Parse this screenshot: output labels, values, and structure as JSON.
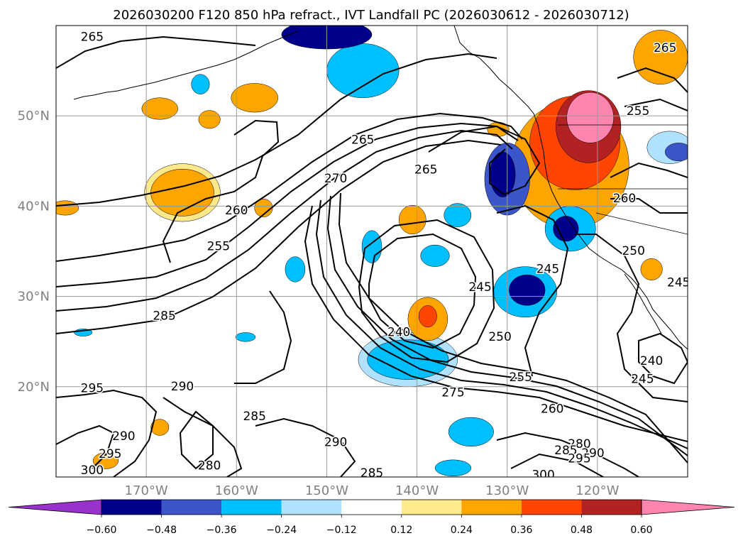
{
  "chart_data": {
    "type": "contour-map",
    "title": "2026030200 F120 850 hPa refract., IVT Landfall PC (2026030612 - 2026030712)",
    "lon_range": [
      -180,
      -110
    ],
    "lat_range": [
      10,
      60
    ],
    "grid": true,
    "xticks": [
      {
        "lon": -170,
        "label": "170°W"
      },
      {
        "lon": -160,
        "label": "160°W"
      },
      {
        "lon": -150,
        "label": "150°W"
      },
      {
        "lon": -140,
        "label": "140°W"
      },
      {
        "lon": -130,
        "label": "130°W"
      },
      {
        "lon": -120,
        "label": "120°W"
      }
    ],
    "yticks": [
      {
        "lat": 50,
        "label": "50°N"
      },
      {
        "lat": 40,
        "label": "40°N"
      },
      {
        "lat": 30,
        "label": "30°N"
      },
      {
        "lat": 20,
        "label": "20°N"
      }
    ],
    "colorbar": {
      "orientation": "horizontal",
      "extend": "both",
      "boundaries": [
        -0.72,
        -0.6,
        -0.48,
        -0.36,
        -0.24,
        -0.12,
        0.12,
        0.24,
        0.36,
        0.48,
        0.6,
        0.72
      ],
      "colors": [
        "#9932cc",
        "#00008b",
        "#3a56c8",
        "#00bfff",
        "#b0e2ff",
        "#ffffff",
        "#ffe98a",
        "#ffa500",
        "#ff4500",
        "#b22222",
        "#ff85b0"
      ],
      "tick_labels": [
        "−0.60",
        "−0.48",
        "−0.36",
        "−0.24",
        "−0.12",
        "0.12",
        "0.24",
        "0.36",
        "0.48",
        "0.60"
      ]
    },
    "filled_regions": [
      {
        "value": 0.3,
        "lon": -166.0,
        "lat": 41.5,
        "rlon": 3.5,
        "rlat": 2.6
      },
      {
        "value": 0.18,
        "lon": -166.0,
        "lat": 41.5,
        "rlon": 4.2,
        "rlat": 3.2
      },
      {
        "value": 0.24,
        "lon": -158.0,
        "lat": 52.0,
        "rlon": 2.6,
        "rlat": 1.6
      },
      {
        "value": 0.3,
        "lon": -168.5,
        "lat": 50.8,
        "rlon": 2.0,
        "rlat": 1.2
      },
      {
        "value": 0.24,
        "lon": -163.0,
        "lat": 49.6,
        "rlon": 1.2,
        "rlat": 1.0
      },
      {
        "value": 0.26,
        "lon": -138.8,
        "lat": 27.5,
        "rlon": 2.2,
        "rlat": 2.4
      },
      {
        "value": 0.4,
        "lon": -138.8,
        "lat": 27.8,
        "rlon": 1.0,
        "rlat": 1.2
      },
      {
        "value": 0.3,
        "lon": -140.5,
        "lat": 38.5,
        "rlon": 1.5,
        "rlat": 1.6
      },
      {
        "value": 0.25,
        "lon": -157.0,
        "lat": 39.8,
        "rlon": 1.0,
        "rlat": 1.0
      },
      {
        "value": 0.28,
        "lon": -179.0,
        "lat": 39.8,
        "rlon": 1.5,
        "rlat": 0.8
      },
      {
        "value": 0.26,
        "lon": -168.5,
        "lat": 15.5,
        "rlon": 1.0,
        "rlat": 0.9
      },
      {
        "value": 0.3,
        "lon": -174.5,
        "lat": 11.8,
        "rlon": 1.4,
        "rlat": 0.9
      },
      {
        "value": 0.3,
        "lon": -131.0,
        "lat": 48.5,
        "rlon": 1.2,
        "rlat": 0.8
      },
      {
        "value": 0.25,
        "lon": -114.0,
        "lat": 33.0,
        "rlon": 1.2,
        "rlat": 1.2
      },
      {
        "value": 0.26,
        "lon": -123.0,
        "lat": 44.5,
        "rlon": 6.5,
        "rlat": 7.0
      },
      {
        "value": 0.4,
        "lon": -122.5,
        "lat": 47.0,
        "rlon": 5.0,
        "rlat": 5.2
      },
      {
        "value": 0.52,
        "lon": -121.0,
        "lat": 48.8,
        "rlon": 3.6,
        "rlat": 4.0
      },
      {
        "value": 0.66,
        "lon": -120.8,
        "lat": 49.8,
        "rlon": 2.6,
        "rlat": 2.8
      },
      {
        "value": 0.3,
        "lon": -113.0,
        "lat": 56.5,
        "rlon": 3.0,
        "rlat": 3.0
      },
      {
        "value": -0.3,
        "lon": -141.0,
        "lat": 23.0,
        "rlon": 4.5,
        "rlat": 2.2
      },
      {
        "value": -0.2,
        "lon": -141.0,
        "lat": 23.0,
        "rlon": 5.5,
        "rlat": 3.0
      },
      {
        "value": -0.38,
        "lon": -130.0,
        "lat": 43.0,
        "rlon": 2.5,
        "rlat": 4.0
      },
      {
        "value": -0.55,
        "lon": -130.5,
        "lat": 43.5,
        "rlon": 1.4,
        "rlat": 2.5
      },
      {
        "value": -0.34,
        "lon": -128.0,
        "lat": 30.5,
        "rlon": 3.5,
        "rlat": 2.8
      },
      {
        "value": -0.56,
        "lon": -127.8,
        "lat": 30.7,
        "rlon": 2.0,
        "rlat": 1.7
      },
      {
        "value": -0.3,
        "lon": -123.0,
        "lat": 37.5,
        "rlon": 2.8,
        "rlat": 2.5
      },
      {
        "value": -0.5,
        "lon": -123.5,
        "lat": 37.5,
        "rlon": 1.4,
        "rlat": 1.4
      },
      {
        "value": -0.3,
        "lon": -146.0,
        "lat": 55.0,
        "rlon": 4.0,
        "rlat": 3.0
      },
      {
        "value": -0.55,
        "lon": -150.0,
        "lat": 59.0,
        "rlon": 5.0,
        "rlat": 1.6
      },
      {
        "value": -0.3,
        "lon": -145.0,
        "lat": 35.5,
        "rlon": 1.1,
        "rlat": 1.8
      },
      {
        "value": -0.3,
        "lon": -138.0,
        "lat": 34.5,
        "rlon": 1.6,
        "rlat": 1.2
      },
      {
        "value": -0.26,
        "lon": -135.5,
        "lat": 39.0,
        "rlon": 1.5,
        "rlat": 1.3
      },
      {
        "value": -0.26,
        "lon": -134.0,
        "lat": 15.0,
        "rlon": 2.5,
        "rlat": 1.6
      },
      {
        "value": -0.26,
        "lon": -136.0,
        "lat": 11.0,
        "rlon": 2.0,
        "rlat": 0.9
      },
      {
        "value": -0.28,
        "lon": -153.5,
        "lat": 33.0,
        "rlon": 1.1,
        "rlat": 1.4
      },
      {
        "value": -0.28,
        "lon": -164.0,
        "lat": 53.5,
        "rlon": 1.0,
        "rlat": 1.1
      },
      {
        "value": -0.2,
        "lon": -112.0,
        "lat": 46.5,
        "rlon": 2.5,
        "rlat": 1.8
      },
      {
        "value": -0.4,
        "lon": -111.0,
        "lat": 46.0,
        "rlon": 1.5,
        "rlat": 1.0
      },
      {
        "value": -0.28,
        "lon": -159.0,
        "lat": 25.5,
        "rlon": 1.1,
        "rlat": 0.5
      },
      {
        "value": -0.28,
        "lon": -177.0,
        "lat": 26.0,
        "rlon": 1.0,
        "rlat": 0.4
      }
    ],
    "contour_labels": [
      {
        "text": "265",
        "lon": -176.0,
        "lat": 58.7
      },
      {
        "text": "265",
        "lon": -146.0,
        "lat": 47.3
      },
      {
        "text": "270",
        "lon": -149.0,
        "lat": 43.0
      },
      {
        "text": "265",
        "lon": -139.0,
        "lat": 44.0
      },
      {
        "text": "260",
        "lon": -160.0,
        "lat": 39.5
      },
      {
        "text": "255",
        "lon": -162.0,
        "lat": 35.5
      },
      {
        "text": "285",
        "lon": -168.0,
        "lat": 27.8
      },
      {
        "text": "290",
        "lon": -166.0,
        "lat": 20.0
      },
      {
        "text": "295",
        "lon": -176.0,
        "lat": 19.8
      },
      {
        "text": "285",
        "lon": -158.0,
        "lat": 16.7
      },
      {
        "text": "290",
        "lon": -172.5,
        "lat": 14.5
      },
      {
        "text": "295",
        "lon": -174.0,
        "lat": 12.5
      },
      {
        "text": "300",
        "lon": -176.0,
        "lat": 10.7
      },
      {
        "text": "290",
        "lon": -149.0,
        "lat": 13.8
      },
      {
        "text": "280",
        "lon": -163.0,
        "lat": 11.2
      },
      {
        "text": "285",
        "lon": -145.0,
        "lat": 10.4
      },
      {
        "text": "240",
        "lon": -142.0,
        "lat": 26.0
      },
      {
        "text": "245",
        "lon": -133.0,
        "lat": 31.0
      },
      {
        "text": "250",
        "lon": -130.8,
        "lat": 25.5
      },
      {
        "text": "255",
        "lon": -128.5,
        "lat": 21.0
      },
      {
        "text": "260",
        "lon": -125.0,
        "lat": 17.5
      },
      {
        "text": "275",
        "lon": -136.0,
        "lat": 19.3
      },
      {
        "text": "245",
        "lon": -125.5,
        "lat": 33.0
      },
      {
        "text": "250",
        "lon": -116.0,
        "lat": 35.0
      },
      {
        "text": "260",
        "lon": -117.0,
        "lat": 40.8
      },
      {
        "text": "255",
        "lon": -115.5,
        "lat": 50.5
      },
      {
        "text": "265",
        "lon": -112.5,
        "lat": 57.5
      },
      {
        "text": "245",
        "lon": -111.0,
        "lat": 31.5
      },
      {
        "text": "240",
        "lon": -114.0,
        "lat": 22.8
      },
      {
        "text": "245",
        "lon": -115.0,
        "lat": 20.8
      },
      {
        "text": "280",
        "lon": -122.0,
        "lat": 13.6
      },
      {
        "text": "285",
        "lon": -123.5,
        "lat": 12.9
      },
      {
        "text": "290",
        "lon": -120.5,
        "lat": 12.6
      },
      {
        "text": "295",
        "lon": -122.0,
        "lat": 12.0
      },
      {
        "text": "300",
        "lon": -126.0,
        "lat": 10.2
      }
    ]
  }
}
